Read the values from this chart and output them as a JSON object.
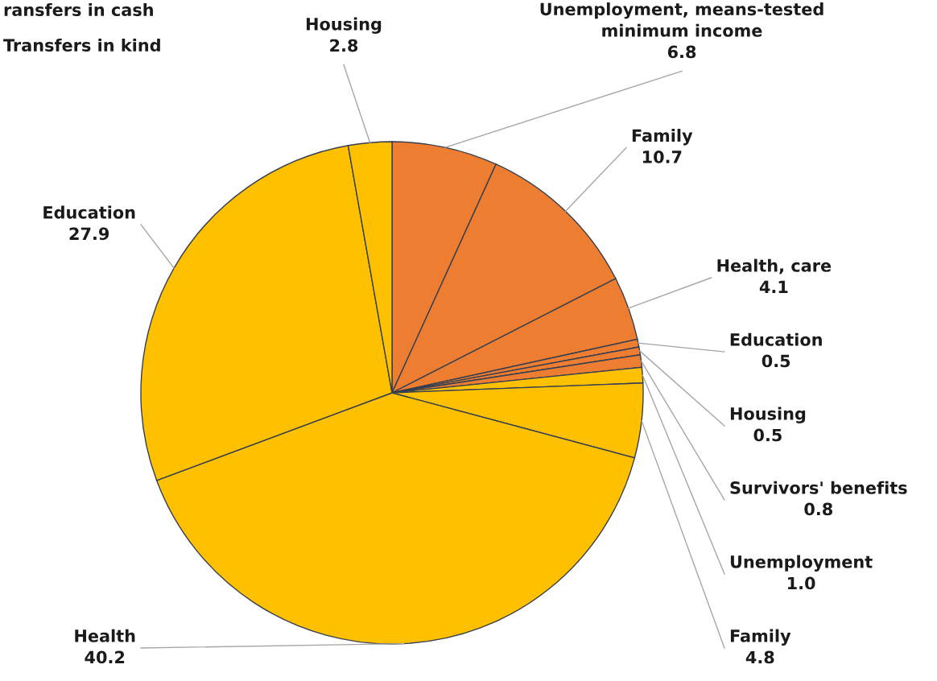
{
  "chart_data": {
    "type": "pie",
    "categories": [
      "Unemployment, means-tested minimum income",
      "Family",
      "Health, care",
      "Education",
      "Housing",
      "Survivors' benefits",
      "Unemployment",
      "Family",
      "Health",
      "Education",
      "Housing"
    ],
    "values": [
      6.8,
      10.7,
      4.1,
      0.5,
      0.5,
      0.8,
      1.0,
      4.8,
      40.2,
      27.9,
      2.8
    ],
    "colors": [
      "#ed7d31",
      "#ed7d31",
      "#ed7d31",
      "#ed7d31",
      "#ed7d31",
      "#ed7d31",
      "#ffc000",
      "#ffc000",
      "#ffc000",
      "#ffc000",
      "#ffc000"
    ],
    "value_labels": [
      "6.8",
      "10.7",
      "4.1",
      "0.5",
      "0.5",
      "0.8",
      "1.0",
      "4.8",
      "40.2",
      "27.9",
      "2.8"
    ],
    "annotations": [
      "ransfers in cash",
      "Transfers in kind"
    ]
  }
}
